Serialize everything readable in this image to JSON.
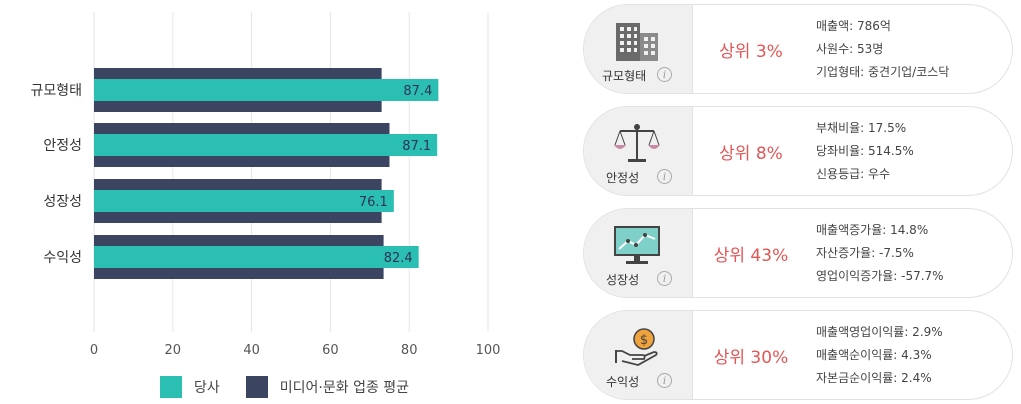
{
  "chart_data": {
    "type": "bar",
    "orientation": "horizontal",
    "categories": [
      "규모형태",
      "안정성",
      "성장성",
      "수익성"
    ],
    "series": [
      {
        "name": "당사",
        "values": [
          87.4,
          87.1,
          76.1,
          82.4
        ],
        "color": "#2bbfb3"
      },
      {
        "name": "미디어·문화 업종 평균",
        "values": [
          73,
          75,
          73,
          73.5
        ],
        "color": "#3b4460"
      }
    ],
    "xlim": [
      0,
      100
    ],
    "xticks": [
      0,
      20,
      40,
      60,
      80,
      100
    ],
    "grid": true,
    "legend_position": "bottom"
  },
  "cards": [
    {
      "category": "규모형태",
      "icon": "building-icon",
      "rank": "상위 3%",
      "details": [
        "매출액: 786억",
        "사원수: 53명",
        "기업형태: 중견기업/코스닥"
      ]
    },
    {
      "category": "안정성",
      "icon": "scales-icon",
      "rank": "상위 8%",
      "details": [
        "부채비율: 17.5%",
        "당좌비율: 514.5%",
        "신용등급: 우수"
      ]
    },
    {
      "category": "성장성",
      "icon": "monitor-chart-icon",
      "rank": "상위 43%",
      "details": [
        "매출액증가율: 14.8%",
        "자산증가율: -7.5%",
        "영업이익증가율: -57.7%"
      ]
    },
    {
      "category": "수익성",
      "icon": "money-hand-icon",
      "rank": "상위 30%",
      "details": [
        "매출액영업이익률: 2.9%",
        "매출액순이익률: 4.3%",
        "자본금순이익률: 2.4%"
      ]
    }
  ],
  "info_glyph": "i",
  "colors": {
    "accent": "#2bbfb3",
    "average": "#3b4460",
    "rank": "#e45555"
  }
}
